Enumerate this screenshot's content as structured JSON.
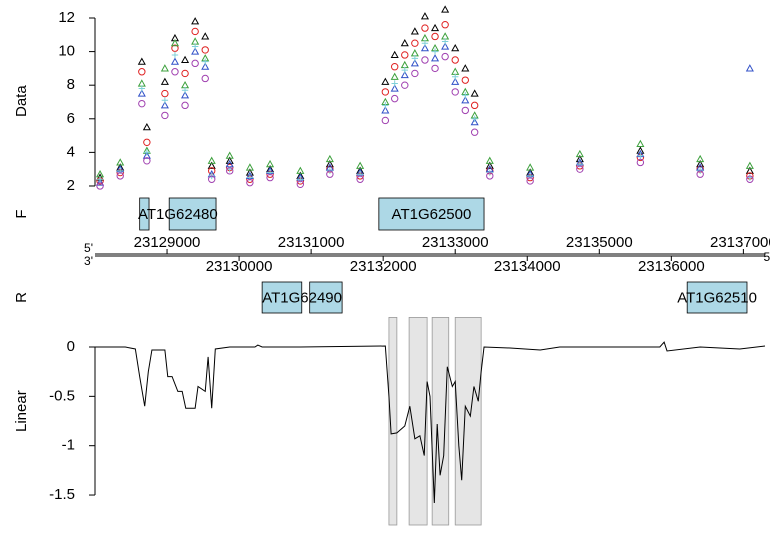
{
  "chart_data": [
    {
      "type": "scatter",
      "ylabel": "Data",
      "xlim": [
        23128000,
        23137300
      ],
      "ylim": [
        1.6,
        12.5
      ],
      "yticks": [
        2,
        4,
        6,
        8,
        10,
        12
      ],
      "x": [
        23128070,
        23128350,
        23128650,
        23128720,
        23128970,
        23129110,
        23129250,
        23129390,
        23129530,
        23129620,
        23129870,
        23130150,
        23130430,
        23130850,
        23131260,
        23131680,
        23132030,
        23132160,
        23132300,
        23132440,
        23132580,
        23132720,
        23132860,
        23133000,
        23133140,
        23133270,
        23133480,
        23134040,
        23134730,
        23135570,
        23136400,
        23137090
      ],
      "series": [
        {
          "color": "#000000",
          "marker": "triangle",
          "values": [
            2.5,
            3.1,
            9.4,
            5.5,
            8.2,
            10.8,
            9.5,
            11.8,
            10.9,
            3.2,
            3.5,
            2.8,
            3.0,
            2.6,
            3.3,
            2.9,
            8.2,
            9.8,
            10.5,
            11.2,
            12.1,
            11.4,
            12.5,
            10.2,
            9.0,
            7.5,
            3.2,
            2.8,
            3.6,
            4.1,
            3.3,
            2.9
          ]
        },
        {
          "color": "#df2020",
          "marker": "circle",
          "values": [
            2.3,
            2.8,
            8.8,
            4.6,
            7.5,
            10.2,
            8.7,
            11.2,
            10.1,
            2.9,
            3.1,
            2.4,
            2.7,
            2.3,
            3.0,
            2.6,
            7.6,
            9.1,
            9.8,
            10.5,
            11.4,
            10.9,
            11.6,
            9.5,
            8.3,
            6.8,
            2.9,
            2.5,
            3.2,
            3.7,
            3.0,
            2.6
          ]
        },
        {
          "color": "#3ca03c",
          "marker": "triangle",
          "values": [
            2.7,
            3.4,
            8.1,
            4.1,
            9.0,
            10.5,
            8.0,
            10.6,
            9.6,
            3.5,
            3.8,
            3.1,
            3.3,
            2.9,
            3.6,
            3.2,
            7.0,
            8.5,
            9.2,
            9.9,
            10.8,
            10.2,
            10.9,
            8.8,
            7.6,
            6.2,
            3.5,
            3.1,
            3.9,
            4.5,
            3.6,
            3.2
          ]
        },
        {
          "color": "#3050c8",
          "marker": "triangle",
          "values": [
            2.2,
            3.0,
            7.5,
            3.8,
            6.8,
            9.4,
            7.4,
            10.0,
            9.1,
            2.7,
            3.3,
            2.6,
            2.9,
            2.5,
            3.1,
            2.8,
            6.5,
            7.8,
            8.6,
            9.3,
            10.2,
            9.6,
            10.3,
            8.2,
            7.1,
            5.8,
            3.0,
            2.7,
            3.4,
            3.9,
            3.1,
            9.0
          ]
        },
        {
          "color": "#7fd0d8",
          "marker": "plus",
          "values": [
            2.4,
            2.9,
            7.8,
            4.0,
            7.1,
            9.8,
            7.7,
            10.3,
            9.4,
            2.6,
            3.0,
            2.5,
            2.8,
            2.4,
            2.9,
            2.7,
            6.8,
            8.1,
            8.9,
            9.6,
            10.5,
            10.0,
            10.6,
            8.5,
            7.4,
            6.0,
            2.8,
            2.6,
            3.3,
            3.8,
            2.9,
            2.5
          ]
        },
        {
          "color": "#a040b0",
          "marker": "circle",
          "values": [
            2.0,
            2.6,
            6.9,
            3.5,
            6.2,
            8.8,
            6.8,
            9.3,
            8.4,
            2.4,
            2.9,
            2.2,
            2.5,
            2.1,
            2.7,
            2.4,
            5.9,
            7.2,
            8.0,
            8.7,
            9.5,
            9.0,
            9.7,
            7.6,
            6.5,
            5.2,
            2.6,
            2.3,
            3.0,
            3.4,
            2.7,
            2.4
          ]
        }
      ]
    },
    {
      "type": "gene-track",
      "ylabel": "F",
      "xlim": [
        23128000,
        23137300
      ],
      "color": "#add8e6",
      "genes": [
        {
          "name": "AT1G62480",
          "exons": [
            [
              23128620,
              23128750
            ],
            [
              23129030,
              23129680
            ]
          ]
        },
        {
          "name": "AT1G62500",
          "exons": [
            [
              23131940,
              23133400
            ]
          ]
        }
      ]
    },
    {
      "type": "genome-axis",
      "xlim": [
        23128000,
        23137300
      ],
      "xticks": [
        23129000,
        23130000,
        23131000,
        23132000,
        23133000,
        23134000,
        23135000,
        23136000,
        23137000
      ],
      "left_top": "5'",
      "left_bottom": "3'",
      "right": "5'"
    },
    {
      "type": "gene-track",
      "ylabel": "R",
      "xlim": [
        23128000,
        23137300
      ],
      "color": "#add8e6",
      "genes": [
        {
          "name": "AT1G62490",
          "exons": [
            [
              23130320,
              23130870
            ],
            [
              23130980,
              23131430
            ]
          ]
        },
        {
          "name": "AT1G62510",
          "exons": [
            [
              23136220,
              23137050
            ]
          ]
        }
      ]
    },
    {
      "type": "line",
      "ylabel": "Linear",
      "xlim": [
        23128000,
        23137300
      ],
      "ylim": [
        -1.6,
        0.3
      ],
      "yticks": [
        0,
        -0.5,
        -1,
        -1.5
      ],
      "color": "#000000",
      "highlight_color": "#e5e5e5",
      "highlights": [
        [
          23132080,
          23132190
        ],
        [
          23132360,
          23132610
        ],
        [
          23132680,
          23132910
        ],
        [
          23133000,
          23133360
        ]
      ],
      "x": [
        23128000,
        23128420,
        23128560,
        23128620,
        23128690,
        23128740,
        23128790,
        23128970,
        23129010,
        23129070,
        23129150,
        23129210,
        23129260,
        23129390,
        23129430,
        23129530,
        23129570,
        23129620,
        23129670,
        23129870,
        23130220,
        23130260,
        23130320,
        23130850,
        23132030,
        23132080,
        23132110,
        23132190,
        23132300,
        23132370,
        23132440,
        23132510,
        23132570,
        23132610,
        23132650,
        23132710,
        23132750,
        23132790,
        23132840,
        23132890,
        23132960,
        23133000,
        23133050,
        23133090,
        23133140,
        23133210,
        23133260,
        23133320,
        23133360,
        23133400,
        23133760,
        23134180,
        23134450,
        23135840,
        23135900,
        23135940,
        23136400,
        23136950,
        23137300
      ],
      "values": [
        0,
        0,
        -0.02,
        -0.3,
        -0.6,
        -0.25,
        -0.03,
        -0.03,
        -0.3,
        -0.3,
        -0.45,
        -0.45,
        -0.62,
        -0.62,
        -0.4,
        -0.45,
        -0.1,
        -0.62,
        -0.02,
        0,
        0,
        0.02,
        0,
        0,
        0.01,
        -0.5,
        -0.88,
        -0.87,
        -0.8,
        -0.6,
        -0.93,
        -0.9,
        -1.1,
        -0.35,
        -0.5,
        -1.58,
        -0.78,
        -1.3,
        -1.1,
        -0.2,
        -0.4,
        -0.35,
        -1.0,
        -1.35,
        -0.6,
        -0.7,
        -0.4,
        -0.55,
        -0.25,
        0,
        -0.01,
        -0.03,
        0,
        0,
        0.05,
        -0.04,
        0,
        -0.02,
        0.01
      ]
    }
  ]
}
